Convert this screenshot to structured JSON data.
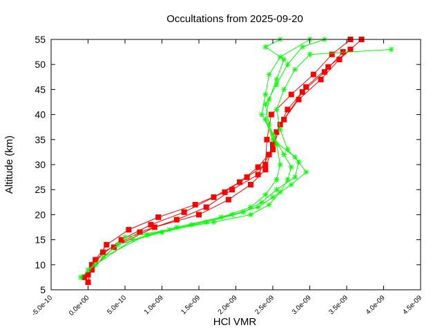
{
  "chart_data": {
    "type": "line",
    "title": "Occultations from 2025-09-20",
    "xlabel": "HCl VMR",
    "ylabel": "Altitude (km)",
    "xlim": [
      -5e-10,
      4.5e-09
    ],
    "ylim": [
      5,
      55
    ],
    "x_tick_labels": [
      "-5.0e-10",
      "0.0e+00",
      "5.0e-10",
      "1.0e-09",
      "1.5e-09",
      "2.0e-09",
      "2.5e-09",
      "3.0e-09",
      "3.5e-09",
      "4.0e-09",
      "4.5e-09"
    ],
    "y_tick_labels": [
      "5",
      "10",
      "15",
      "20",
      "25",
      "30",
      "35",
      "40",
      "45",
      "50",
      "55"
    ],
    "grid": false,
    "legend": "none",
    "series": [
      {
        "marker": "square",
        "color": "#ff0000",
        "points": [
          [
            0.0,
            6.5
          ],
          [
            5e-11,
            10.0
          ],
          [
            2.5e-10,
            14.0
          ],
          [
            5.5e-10,
            17.0
          ],
          [
            9.5e-10,
            19.5
          ],
          [
            1.45e-09,
            22.0
          ],
          [
            1.85e-09,
            24.5
          ],
          [
            2.15e-09,
            27.5
          ],
          [
            2.4e-09,
            30.0
          ],
          [
            2.42e-09,
            35.0
          ],
          [
            2.48e-09,
            40.0
          ],
          [
            2.75e-09,
            44.0
          ],
          [
            3.05e-09,
            48.0
          ],
          [
            3.3e-09,
            52.0
          ],
          [
            3.55e-09,
            55.0
          ]
        ]
      },
      {
        "marker": "square",
        "color": "#ff0000",
        "points": [
          [
            -5e-11,
            7.5
          ],
          [
            1e-10,
            11.0
          ],
          [
            4.5e-10,
            15.0
          ],
          [
            8.5e-10,
            18.0
          ],
          [
            1.3e-09,
            20.5
          ],
          [
            1.7e-09,
            23.5
          ],
          [
            2.05e-09,
            26.5
          ],
          [
            2.3e-09,
            29.5
          ],
          [
            2.5e-09,
            33.0
          ],
          [
            2.6e-09,
            38.0
          ],
          [
            2.85e-09,
            43.0
          ],
          [
            3.15e-09,
            47.0
          ],
          [
            3.4e-09,
            51.0
          ],
          [
            3.7e-09,
            55.0
          ]
        ]
      },
      {
        "marker": "square",
        "color": "#ff0000",
        "points": [
          [
            0.0,
            8.0
          ],
          [
            2e-10,
            12.5
          ],
          [
            7e-10,
            16.5
          ],
          [
            1.2e-09,
            19.0
          ],
          [
            1.6e-09,
            21.5
          ],
          [
            1.95e-09,
            25.0
          ],
          [
            2.3e-09,
            28.0
          ],
          [
            2.45e-09,
            32.0
          ],
          [
            2.55e-09,
            36.5
          ],
          [
            2.7e-09,
            41.0
          ],
          [
            2.95e-09,
            45.5
          ],
          [
            3.25e-09,
            49.5
          ],
          [
            3.55e-09,
            53.0
          ]
        ]
      },
      {
        "marker": "square",
        "color": "#ff0000",
        "points": [
          [
            5e-11,
            9.0
          ],
          [
            3.5e-10,
            13.5
          ],
          [
            9e-10,
            17.5
          ],
          [
            1.5e-09,
            20.0
          ],
          [
            1.9e-09,
            23.0
          ],
          [
            2.2e-09,
            26.0
          ],
          [
            2.4e-09,
            29.0
          ],
          [
            2.5e-09,
            34.0
          ],
          [
            2.65e-09,
            39.0
          ],
          [
            2.9e-09,
            44.5
          ],
          [
            3.2e-09,
            48.5
          ],
          [
            3.45e-09,
            52.5
          ]
        ]
      },
      {
        "marker": "star",
        "color": "#00ff00",
        "points": [
          [
            -1e-10,
            7.5
          ],
          [
            1e-10,
            10.0
          ],
          [
            6e-10,
            15.0
          ],
          [
            1.2e-09,
            17.5
          ],
          [
            1.8e-09,
            19.5
          ],
          [
            2.2e-09,
            21.5
          ],
          [
            2.4e-09,
            24.0
          ],
          [
            2.55e-09,
            27.0
          ],
          [
            2.6e-09,
            30.0
          ],
          [
            2.55e-09,
            34.0
          ],
          [
            2.45e-09,
            38.0
          ],
          [
            2.4e-09,
            42.0
          ],
          [
            2.55e-09,
            46.0
          ],
          [
            2.7e-09,
            50.0
          ],
          [
            2.9e-09,
            53.5
          ],
          [
            3.2e-09,
            55.0
          ]
        ]
      },
      {
        "marker": "star",
        "color": "#00ff00",
        "points": [
          [
            0.0,
            9.0
          ],
          [
            4e-10,
            14.0
          ],
          [
            1e-09,
            16.5
          ],
          [
            1.6e-09,
            18.5
          ],
          [
            2.1e-09,
            20.5
          ],
          [
            2.35e-09,
            22.5
          ],
          [
            2.55e-09,
            25.0
          ],
          [
            2.8e-09,
            27.5
          ],
          [
            2.85e-09,
            30.5
          ],
          [
            2.7e-09,
            33.0
          ],
          [
            2.6e-09,
            37.0
          ],
          [
            2.55e-09,
            41.0
          ],
          [
            2.65e-09,
            45.0
          ],
          [
            2.8e-09,
            49.0
          ],
          [
            3e-09,
            52.0
          ],
          [
            4.1e-09,
            53.0
          ]
        ]
      },
      {
        "marker": "star",
        "color": "#00ff00",
        "points": [
          [
            2e-10,
            11.5
          ],
          [
            8e-10,
            16.0
          ],
          [
            1.4e-09,
            18.0
          ],
          [
            1.95e-09,
            20.0
          ],
          [
            2.3e-09,
            21.5
          ],
          [
            2.5e-09,
            23.5
          ],
          [
            2.75e-09,
            26.0
          ],
          [
            2.95e-09,
            28.5
          ],
          [
            2.8e-09,
            31.5
          ],
          [
            2.5e-09,
            35.0
          ],
          [
            2.4e-09,
            39.0
          ],
          [
            2.45e-09,
            43.0
          ],
          [
            2.55e-09,
            47.0
          ],
          [
            2.65e-09,
            51.0
          ],
          [
            2.4e-09,
            53.5
          ],
          [
            2.6e-09,
            55.0
          ]
        ]
      },
      {
        "marker": "star",
        "color": "#00ff00",
        "points": [
          [
            5e-10,
            15.5
          ],
          [
            1.1e-09,
            17.0
          ],
          [
            1.7e-09,
            18.5
          ],
          [
            2.2e-09,
            20.0
          ],
          [
            2.45e-09,
            22.0
          ],
          [
            2.6e-09,
            24.5
          ],
          [
            2.7e-09,
            27.0
          ],
          [
            2.75e-09,
            29.5
          ],
          [
            2.65e-09,
            32.0
          ],
          [
            2.5e-09,
            36.0
          ],
          [
            2.35e-09,
            40.0
          ],
          [
            2.4e-09,
            44.0
          ],
          [
            2.45e-09,
            48.0
          ],
          [
            2.6e-09,
            51.5
          ],
          [
            3e-09,
            55.0
          ]
        ]
      }
    ]
  }
}
